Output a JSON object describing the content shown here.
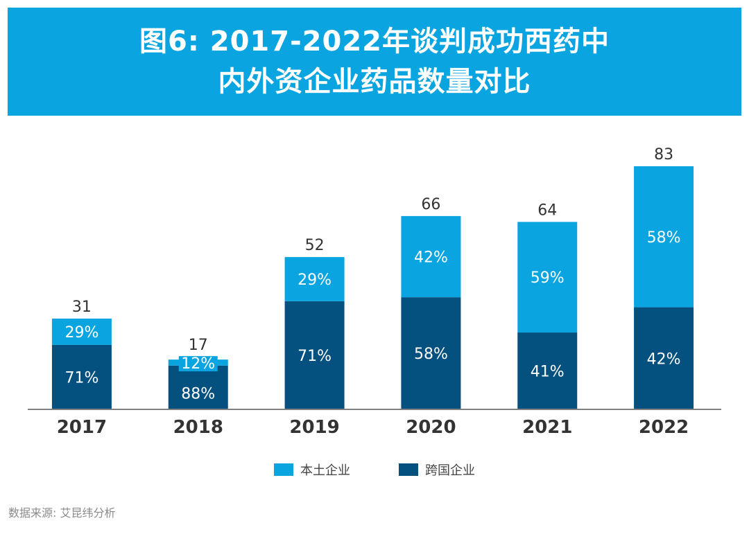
{
  "title": {
    "line1": "图6: 2017-2022年谈判成功西药中",
    "line2": "内外资企业药品数量对比"
  },
  "colors": {
    "banner": "#0aa5e0",
    "domestic": "#0aa5e0",
    "multinational": "#04507f",
    "axis": "#808080",
    "total_label": "#333333",
    "year_label": "#333333"
  },
  "chart_data": {
    "type": "bar",
    "stacked": true,
    "title": "图6: 2017-2022年谈判成功西药中内外资企业药品数量对比",
    "xlabel": "",
    "ylabel": "",
    "categories": [
      "2017",
      "2018",
      "2019",
      "2020",
      "2021",
      "2022"
    ],
    "totals": [
      31,
      17,
      52,
      66,
      64,
      83
    ],
    "series": [
      {
        "name": "跨国企业",
        "percent_labels": [
          "71%",
          "88%",
          "71%",
          "58%",
          "41%",
          "42%"
        ],
        "shares": [
          0.71,
          0.88,
          0.71,
          0.58,
          0.41,
          0.42
        ]
      },
      {
        "name": "本土企业",
        "percent_labels": [
          "29%",
          "12%",
          "29%",
          "42%",
          "59%",
          "58%"
        ],
        "shares": [
          0.29,
          0.12,
          0.29,
          0.42,
          0.59,
          0.58
        ]
      }
    ],
    "ylim": [
      0,
      83
    ],
    "grid": false,
    "legend": "bottom-center"
  },
  "legend": {
    "items": [
      {
        "label": "本土企业",
        "color": "#0aa5e0"
      },
      {
        "label": "跨国企业",
        "color": "#04507f"
      }
    ]
  },
  "source": "数据来源: 艾昆纬分析"
}
